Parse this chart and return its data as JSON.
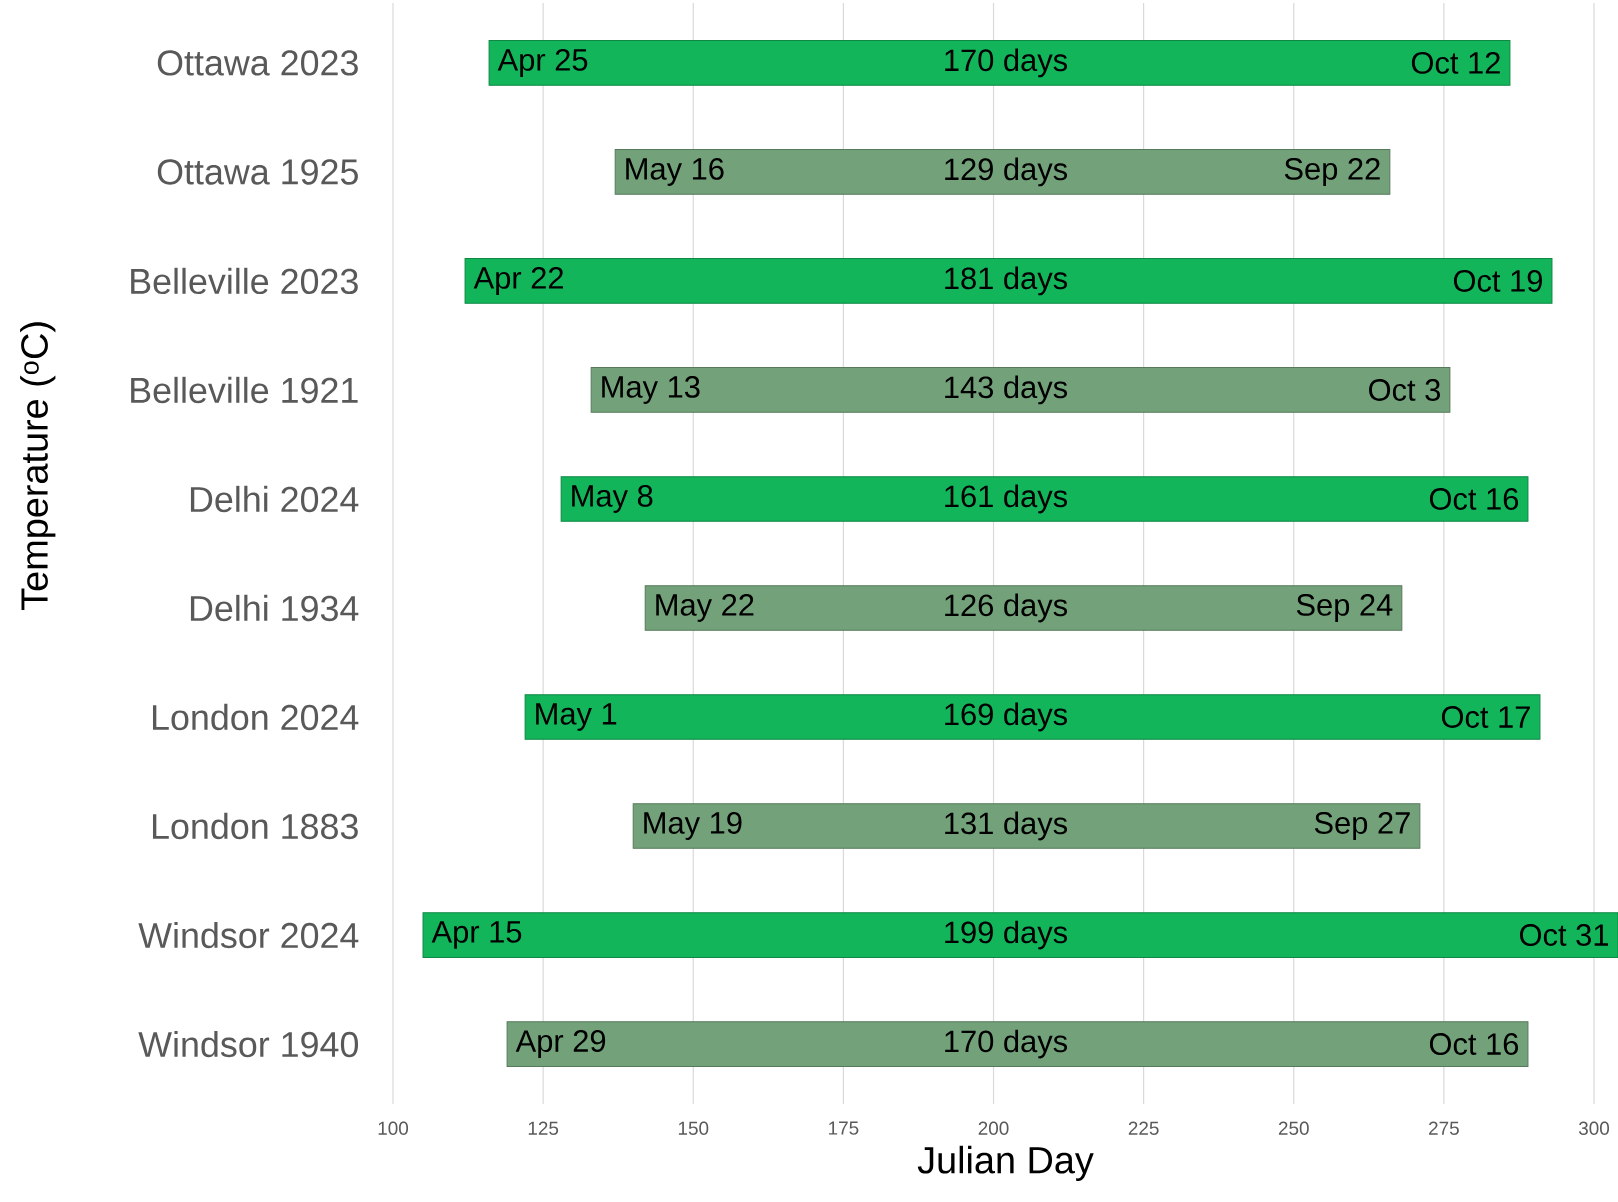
{
  "chart_data": {
    "type": "bar",
    "orientation": "horizontal",
    "xlabel": "Julian Day",
    "ylabel": "Temperature ($^{o}$C)",
    "categories": [
      "Ottawa 2023",
      "Ottawa 1925",
      "Belleville 2023",
      "Belleville 1921",
      "Delhi 2024",
      "Delhi 1934",
      "London 2024",
      "London 1883",
      "Windsor 2024",
      "Windsor 1940"
    ],
    "base": [
      116,
      137,
      112,
      133,
      128,
      142,
      122,
      140,
      105,
      119
    ],
    "values": [
      170,
      129,
      181,
      143,
      161,
      126,
      169,
      131,
      199,
      170
    ],
    "value_labels": [
      "170 days",
      "129 days",
      "181 days",
      "143 days",
      "161 days",
      "126 days",
      "169 days",
      "131 days",
      "199 days",
      "170 days"
    ],
    "colors": [
      "#13b55a",
      "#73a27a",
      "#13b55a",
      "#73a27a",
      "#13b55a",
      "#73a27a",
      "#13b55a",
      "#73a27a",
      "#13b55a",
      "#73a27a"
    ],
    "xlim": [
      100,
      304
    ],
    "xticks": [
      100,
      125,
      150,
      175,
      200,
      225,
      250,
      275,
      300
    ],
    "grid": "x",
    "annotations": [
      {
        "text": "Apr 25",
        "x": 116,
        "y": "Ottawa 2023"
      },
      {
        "text": "Oct 12",
        "x": 286,
        "y": "Ottawa 2023"
      },
      {
        "text": "May 16",
        "x": 137,
        "y": "Ottawa 1925"
      },
      {
        "text": "Sep 22",
        "x": 266,
        "y": "Ottawa 1925"
      },
      {
        "text": "Apr 22",
        "x": 112,
        "y": "Belleville 2023"
      },
      {
        "text": "Oct 19",
        "x": 293,
        "y": "Belleville 2023"
      },
      {
        "text": "May 13",
        "x": 133,
        "y": "Belleville 1921"
      },
      {
        "text": "Oct 3",
        "x": 276,
        "y": "Belleville 1921"
      },
      {
        "text": "May 8",
        "x": 128,
        "y": "Delhi 2024"
      },
      {
        "text": "Oct 16",
        "x": 289,
        "y": "Delhi 2024"
      },
      {
        "text": "May 22",
        "x": 142,
        "y": "Delhi 1934"
      },
      {
        "text": "Sep 24",
        "x": 268,
        "y": "Delhi 1934"
      },
      {
        "text": "May 1",
        "x": 122,
        "y": "London 2024"
      },
      {
        "text": "Oct 17",
        "x": 291,
        "y": "London 2024"
      },
      {
        "text": "May 19",
        "x": 140,
        "y": "London 1883"
      },
      {
        "text": "Sep 27",
        "x": 271,
        "y": "London 1883"
      },
      {
        "text": "Apr 15",
        "x": 105,
        "y": "Windsor 2024"
      },
      {
        "text": "Oct 31",
        "x": 304,
        "y": "Windsor 2024"
      },
      {
        "text": "Apr 29",
        "x": 119,
        "y": "Windsor 1940"
      },
      {
        "text": "Oct 16",
        "x": 289,
        "y": "Windsor 1940"
      }
    ]
  }
}
